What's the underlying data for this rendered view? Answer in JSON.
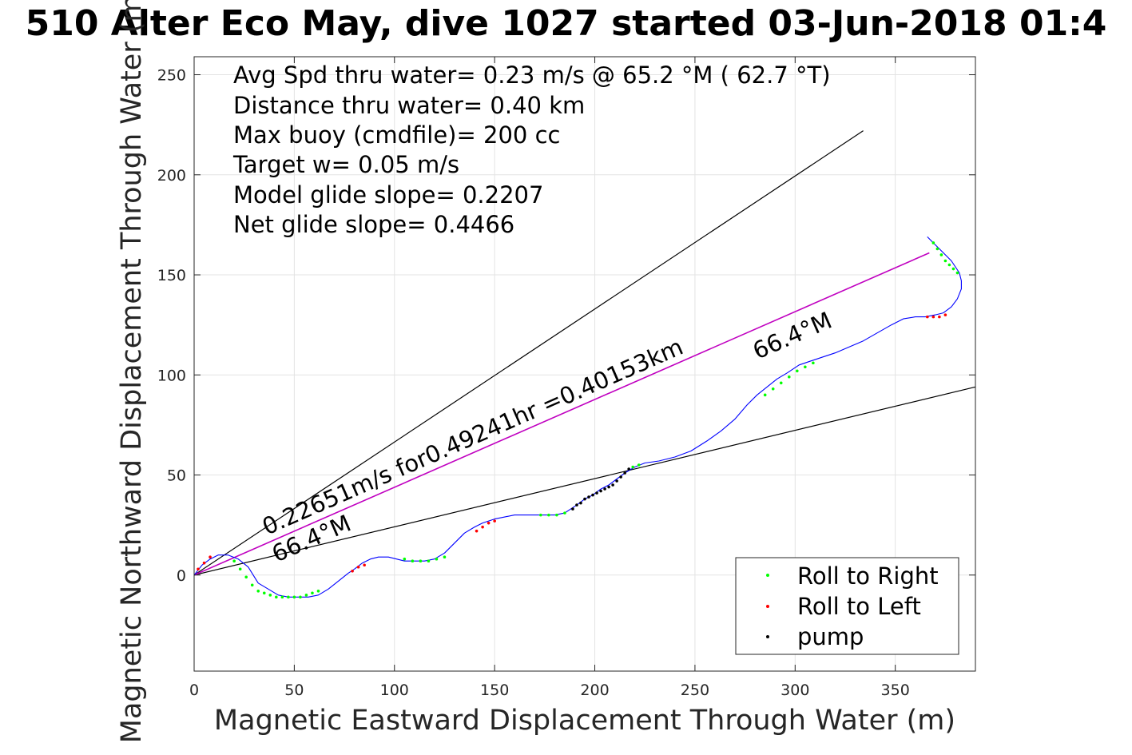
{
  "chart_data": {
    "type": "scatter",
    "title": "510 Alter Eco May, dive 1027 started 03-Jun-2018 01:4",
    "xlabel": "Magnetic Eastward Displacement Through Water (m)",
    "ylabel": "Magnetic Northward Displacement Through Water (m)",
    "xlim": [
      0,
      390
    ],
    "ylim": [
      -48,
      259
    ],
    "xticks": [
      0,
      50,
      100,
      150,
      200,
      250,
      300,
      350
    ],
    "yticks": [
      0,
      50,
      100,
      150,
      200,
      250
    ],
    "grid": true,
    "legend_position": "bottom-right",
    "stats_text": [
      "Avg Spd thru water=  0.23 m/s @  65.2 °M ( 62.7 °T)",
      "Distance thru water=  0.40 km",
      "Max buoy (cmdfile)= 200 cc",
      "Target w= 0.05 m/s",
      "Model glide slope= 0.2207",
      "Net glide slope= 0.4466"
    ],
    "annotations": {
      "speed_label": "0.22651m/s for0.49241hr =0.40153km",
      "heading_label_start": "66.4°M",
      "heading_label_end": "66.4°M"
    },
    "reference_lines": [
      {
        "name": "upper",
        "x": [
          0,
          334
        ],
        "y": [
          0,
          222
        ],
        "color": "#000000"
      },
      {
        "name": "lower",
        "x": [
          0,
          390
        ],
        "y": [
          0,
          94
        ],
        "color": "#000000"
      },
      {
        "name": "heading",
        "x": [
          0,
          367
        ],
        "y": [
          0,
          161
        ],
        "color": "#c000c0"
      }
    ],
    "track": {
      "color": "#0000ff",
      "x": [
        0,
        4,
        8,
        12,
        17,
        22,
        27,
        32,
        37,
        42,
        47,
        52,
        57,
        62,
        67,
        72,
        77,
        80,
        84,
        88,
        92,
        97,
        101,
        105,
        110,
        115,
        120,
        125,
        130,
        135,
        140,
        144,
        147,
        150,
        155,
        160,
        165,
        170,
        175,
        180,
        185,
        188,
        191,
        195,
        199,
        203,
        207,
        211,
        215,
        220,
        225,
        232,
        240,
        248,
        256,
        263,
        270,
        276,
        281,
        286,
        291,
        296,
        302,
        308,
        314,
        320,
        327,
        334,
        341,
        348,
        354,
        360,
        365,
        370,
        374,
        378,
        381,
        383,
        383,
        382,
        380,
        378,
        375,
        372,
        369,
        366
      ],
      "y": [
        0,
        5,
        8,
        10,
        10,
        8,
        4,
        -4,
        -7,
        -10,
        -11,
        -11,
        -11,
        -10,
        -7,
        -3,
        1,
        3,
        6,
        8,
        9,
        9,
        8,
        7,
        7,
        7,
        8,
        11,
        16,
        21,
        24,
        26,
        27,
        28,
        29,
        30,
        30,
        30,
        30,
        30,
        31,
        33,
        35,
        38,
        40,
        43,
        45,
        48,
        51,
        54,
        56,
        57,
        59,
        62,
        67,
        72,
        78,
        85,
        90,
        94,
        98,
        101,
        105,
        107,
        109,
        111,
        114,
        117,
        121,
        125,
        128,
        129,
        129,
        130,
        131,
        134,
        138,
        143,
        147,
        151,
        154,
        157,
        160,
        163,
        166,
        169
      ]
    },
    "series": [
      {
        "name": "Roll to Right",
        "color": "#00ff00",
        "x": [
          20,
          23,
          26,
          29,
          32,
          35,
          38,
          41,
          44,
          47,
          50,
          53,
          56,
          59,
          62,
          105,
          109,
          113,
          117,
          121,
          125,
          173,
          177,
          181,
          185,
          219,
          222,
          285,
          289,
          293,
          297,
          301,
          305,
          309,
          369,
          371,
          373,
          375,
          377,
          379,
          381
        ],
        "y": [
          7,
          3,
          -1,
          -5,
          -8,
          -9,
          -10,
          -11,
          -11,
          -11,
          -11,
          -11,
          -10,
          -9,
          -8,
          8,
          7,
          7,
          7,
          8,
          9,
          30,
          30,
          30,
          31,
          54,
          55,
          90,
          93,
          96,
          99,
          102,
          104,
          106,
          166,
          163,
          160,
          157,
          155,
          153,
          151
        ]
      },
      {
        "name": "Roll to Left",
        "color": "#ff0000",
        "x": [
          2,
          5,
          8,
          79,
          82,
          85,
          141,
          144,
          147,
          150,
          366,
          369,
          372,
          375
        ],
        "y": [
          3,
          6,
          9,
          2,
          4,
          5,
          22,
          24,
          26,
          27,
          129,
          129,
          129,
          130
        ]
      },
      {
        "name": "pump",
        "color": "#000000",
        "x": [
          189,
          191,
          193,
          195,
          197,
          199,
          201,
          203,
          205,
          207,
          209,
          211,
          213,
          215,
          217
        ],
        "y": [
          33,
          35,
          36,
          38,
          39,
          40,
          41,
          42,
          43,
          44,
          45,
          47,
          49,
          51,
          53
        ]
      }
    ]
  }
}
